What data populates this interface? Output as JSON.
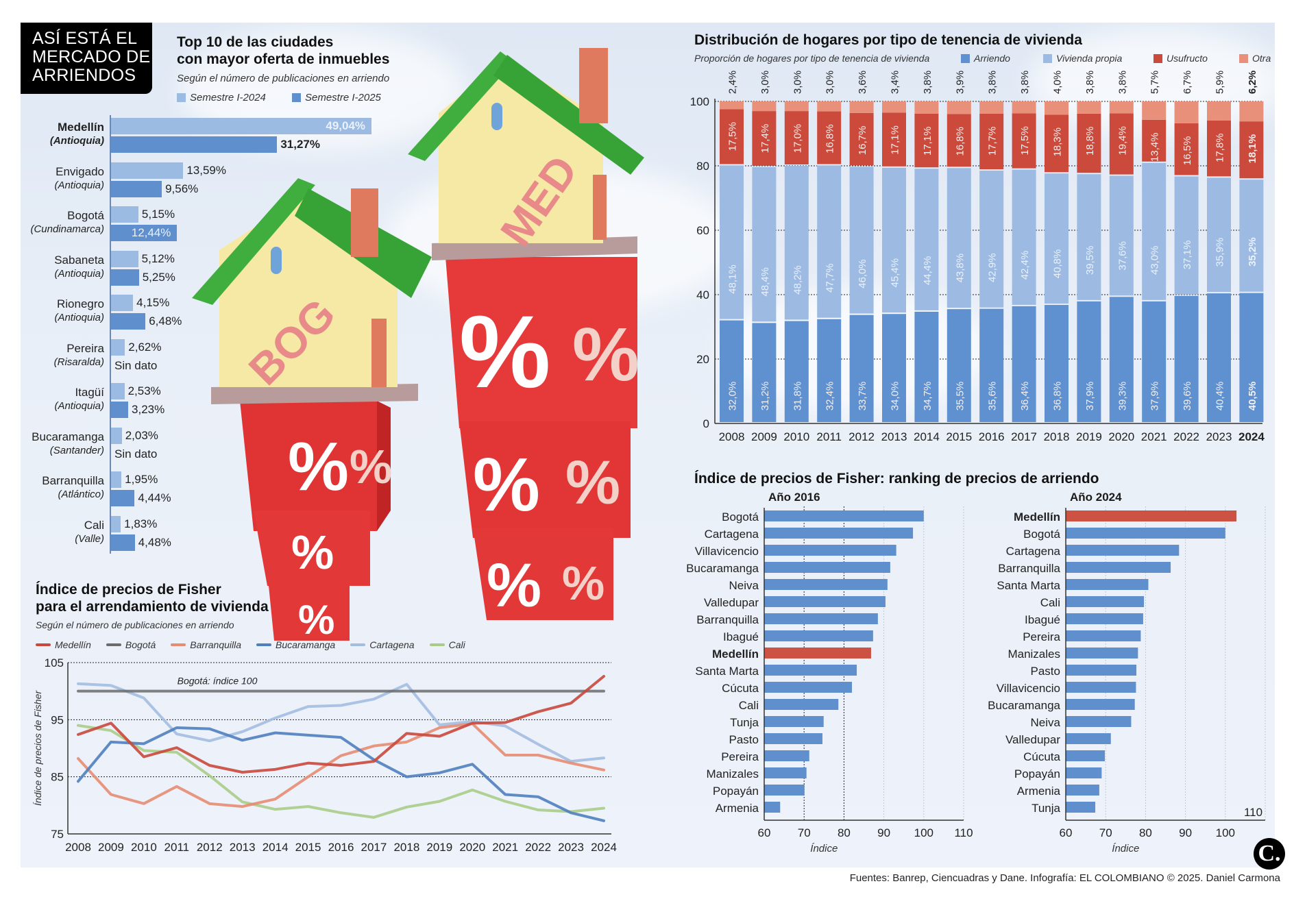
{
  "main_title": [
    "ASÍ ESTÁ EL",
    "MERCADO DE",
    "ARRIENDOS"
  ],
  "colors": {
    "sem2024": "#9bbbe3",
    "sem2025": "#5f8fcc",
    "arriendo": "#5f90cf",
    "vivienda_propia": "#9dbbe2",
    "usufructo": "#cc4a3b",
    "otra": "#e8907a",
    "medellin": "#c9483c",
    "bogota": "#6b6b6b",
    "barranquilla": "#e58c72",
    "bucaramanga": "#4f7fbf",
    "cartagena": "#a3bde0",
    "cali": "#a8cc88",
    "highlight_bar": "#cc5244",
    "default_bar": "#5f8fcc"
  },
  "top10": {
    "title_line1": "Top 10 de las ciudades",
    "title_line2": "con mayor oferta de inmuebles",
    "subtitle": "Según el número de publicaciones en arriendo",
    "legend": [
      "Semestre I-2024",
      "Semestre I-2025"
    ]
  },
  "stacked": {
    "title": "Distribución de hogares por tipo de tenencia de vivienda",
    "subtitle": "Proporción de hogares por tipo de tenencia de vivienda",
    "legend": [
      "Arriendo",
      "Vivienda propia",
      "Usufructo",
      "Otra"
    ]
  },
  "line": {
    "title_line1": "Índice de precios de Fisher",
    "title_line2": "para el arrendamiento de vivienda",
    "subtitle": "Según el número de publicaciones en arriendo",
    "legend": [
      "Medellín",
      "Bogotá",
      "Barranquilla",
      "Bucaramanga",
      "Cartagena",
      "Cali"
    ],
    "annotation": "Bogotá: índice 100",
    "ylabel": "Índice de precios de Fisher"
  },
  "ranking": {
    "title": "Índice de precios de Fisher: ranking de precios de arriendo",
    "panel2016": "Año 2016",
    "panel2024": "Año 2024",
    "xlabel": "Índice",
    "extra_label_2024": "110"
  },
  "illustration": {
    "house_left_label": "BOG",
    "house_right_label": "MED",
    "percent_glyph": "%"
  },
  "footer": "Fuentes: Banrep, Ciencuadras y Dane. Infografía: EL COLOMBIANO © 2025. Daniel Carmona",
  "logo": "C.",
  "chart_data": [
    {
      "type": "bar",
      "title": "Top 10 de las ciudades con mayor oferta de inmuebles",
      "subtitle": "Según el número de publicaciones en arriendo",
      "orientation": "horizontal",
      "unit": "%",
      "categories": [
        {
          "city": "Medellín",
          "region": "(Antioquia)",
          "bold": true
        },
        {
          "city": "Envigado",
          "region": "(Antioquia)"
        },
        {
          "city": "Bogotá",
          "region": "(Cundinamarca)"
        },
        {
          "city": "Sabaneta",
          "region": "(Antioquia)"
        },
        {
          "city": "Rionegro",
          "region": "(Antioquia)"
        },
        {
          "city": "Pereira",
          "region": "(Risaralda)"
        },
        {
          "city": "Itagüí",
          "region": "(Antioquia)"
        },
        {
          "city": "Bucaramanga",
          "region": "(Santander)"
        },
        {
          "city": "Barranquilla",
          "region": "(Atlántico)"
        },
        {
          "city": "Cali",
          "region": "(Valle)"
        }
      ],
      "series": [
        {
          "name": "Semestre I-2024",
          "values": [
            49.04,
            13.59,
            5.15,
            5.12,
            4.15,
            2.62,
            2.53,
            2.03,
            1.95,
            1.83
          ],
          "labels": [
            "49,04%",
            "13,59%",
            "5,15%",
            "5,12%",
            "4,15%",
            "2,62%",
            "2,53%",
            "2,03%",
            "1,95%",
            "1,83%"
          ]
        },
        {
          "name": "Semestre I-2025",
          "values": [
            31.27,
            9.56,
            12.44,
            5.25,
            6.48,
            null,
            3.23,
            null,
            4.44,
            4.48
          ],
          "labels": [
            "31,27%",
            "9,56%",
            "12,44%",
            "5,25%",
            "6,48%",
            "Sin dato",
            "3,23%",
            "Sin dato",
            "4,44%",
            "4,48%"
          ]
        }
      ]
    },
    {
      "type": "bar",
      "stacked": true,
      "title": "Distribución de hogares por tipo de tenencia de vivienda",
      "subtitle": "Proporción de hogares por tipo de tenencia de vivienda",
      "categories": [
        "2008",
        "2009",
        "2010",
        "2011",
        "2012",
        "2013",
        "2014",
        "2015",
        "2016",
        "2017",
        "2018",
        "2019",
        "2020",
        "2021",
        "2022",
        "2023",
        "2024"
      ],
      "ylim": [
        0,
        100
      ],
      "yticks": [
        0,
        20,
        40,
        60,
        80,
        100
      ],
      "grid": true,
      "legend": "top",
      "series": [
        {
          "name": "Arriendo",
          "values": [
            32.0,
            31.2,
            31.8,
            32.4,
            33.7,
            34.0,
            34.7,
            35.5,
            35.6,
            36.4,
            36.8,
            37.9,
            39.3,
            37.9,
            39.6,
            40.4,
            40.5
          ]
        },
        {
          "name": "Vivienda propia",
          "values": [
            48.1,
            48.4,
            48.2,
            47.7,
            46.0,
            45.4,
            44.4,
            43.8,
            42.9,
            42.4,
            40.8,
            39.5,
            37.6,
            43.0,
            37.1,
            35.9,
            35.2
          ]
        },
        {
          "name": "Usufructo",
          "values": [
            17.5,
            17.4,
            17.0,
            16.8,
            16.7,
            17.1,
            17.1,
            16.8,
            17.7,
            17.5,
            18.3,
            18.8,
            19.4,
            13.4,
            16.5,
            17.8,
            18.1
          ]
        },
        {
          "name": "Otra",
          "values": [
            2.4,
            3.0,
            3.0,
            3.0,
            3.6,
            3.4,
            3.8,
            3.9,
            3.8,
            3.8,
            4.0,
            3.8,
            3.8,
            5.7,
            6.7,
            5.9,
            6.2
          ]
        }
      ],
      "highlight_category": "2024"
    },
    {
      "type": "line",
      "title": "Índice de precios de Fisher para el arrendamiento de vivienda",
      "subtitle": "Según el número de publicaciones en arriendo",
      "x": [
        2008,
        2009,
        2010,
        2011,
        2012,
        2013,
        2014,
        2015,
        2016,
        2017,
        2018,
        2019,
        2020,
        2021,
        2022,
        2023,
        2024
      ],
      "ylabel": "Índice de precios de Fisher",
      "ylim": [
        75,
        105
      ],
      "yticks": [
        75,
        85,
        95,
        105
      ],
      "legend": "top",
      "annotation": "Bogotá: índice 100",
      "series": [
        {
          "name": "Medellín",
          "values": [
            92.4,
            94.4,
            88.5,
            90.1,
            87.0,
            85.8,
            86.3,
            87.4,
            87.0,
            87.7,
            92.6,
            92.1,
            94.4,
            94.5,
            96.4,
            97.9,
            102.6
          ]
        },
        {
          "name": "Bogotá",
          "values": [
            100,
            100,
            100,
            100,
            100,
            100,
            100,
            100,
            100,
            100,
            100,
            100,
            100,
            100,
            100,
            100,
            100
          ]
        },
        {
          "name": "Barranquilla",
          "values": [
            88.2,
            81.9,
            80.3,
            83.3,
            80.3,
            79.8,
            81.1,
            85.0,
            88.7,
            90.4,
            91.1,
            93.6,
            94.3,
            88.8,
            88.8,
            87.4,
            86.2
          ]
        },
        {
          "name": "Bucaramanga",
          "values": [
            84.2,
            91.1,
            90.8,
            93.6,
            93.4,
            91.4,
            92.7,
            92.3,
            91.9,
            88.0,
            85.0,
            85.7,
            87.2,
            81.9,
            81.5,
            78.7,
            77.3
          ]
        },
        {
          "name": "Cartagena",
          "values": [
            101.3,
            101.0,
            98.8,
            92.5,
            91.3,
            92.9,
            95.3,
            97.3,
            97.5,
            98.6,
            101.2,
            94.1,
            94.7,
            93.9,
            90.7,
            87.7,
            88.3
          ]
        },
        {
          "name": "Cali",
          "values": [
            94.0,
            93.1,
            89.6,
            89.3,
            85.2,
            80.6,
            79.3,
            79.8,
            78.7,
            77.9,
            79.7,
            80.7,
            82.7,
            80.7,
            79.2,
            78.9,
            79.5
          ]
        }
      ]
    },
    {
      "type": "bar",
      "orientation": "horizontal",
      "title": "Índice de precios de Fisher: ranking de precios de arriendo — Año 2016",
      "xlabel": "Índice",
      "xlim": [
        60,
        110
      ],
      "xticks": [
        60,
        70,
        80,
        90,
        100,
        110
      ],
      "highlight": "Medellín",
      "categories": [
        "Bogotá",
        "Cartagena",
        "Villavicencio",
        "Bucaramanga",
        "Neiva",
        "Valledupar",
        "Barranquilla",
        "Ibagué",
        "Medellín",
        "Santa Marta",
        "Cúcuta",
        "Cali",
        "Tunja",
        "Pasto",
        "Pereira",
        "Manizales",
        "Popayán",
        "Armenia"
      ],
      "values": [
        100.0,
        97.3,
        93.1,
        91.6,
        90.9,
        90.4,
        88.5,
        87.3,
        86.8,
        83.2,
        82.0,
        78.6,
        74.9,
        74.6,
        71.3,
        70.6,
        70.1,
        64.0
      ]
    },
    {
      "type": "bar",
      "orientation": "horizontal",
      "title": "Índice de precios de Fisher: ranking de precios de arriendo — Año 2024",
      "xlabel": "Índice",
      "xlim": [
        60,
        110
      ],
      "xticks": [
        60,
        70,
        80,
        90,
        100
      ],
      "highlight": "Medellín",
      "categories": [
        "Medellín",
        "Bogotá",
        "Cartagena",
        "Barranquilla",
        "Santa Marta",
        "Cali",
        "Ibagué",
        "Pereira",
        "Manizales",
        "Pasto",
        "Villavicencio",
        "Bucaramanga",
        "Neiva",
        "Valledupar",
        "Cúcuta",
        "Popayán",
        "Armenia",
        "Tunja"
      ],
      "values": [
        102.8,
        100.0,
        88.4,
        86.3,
        80.7,
        79.6,
        79.4,
        78.8,
        78.1,
        77.7,
        77.6,
        77.3,
        76.4,
        71.3,
        69.8,
        69.0,
        68.4,
        67.4
      ]
    }
  ]
}
